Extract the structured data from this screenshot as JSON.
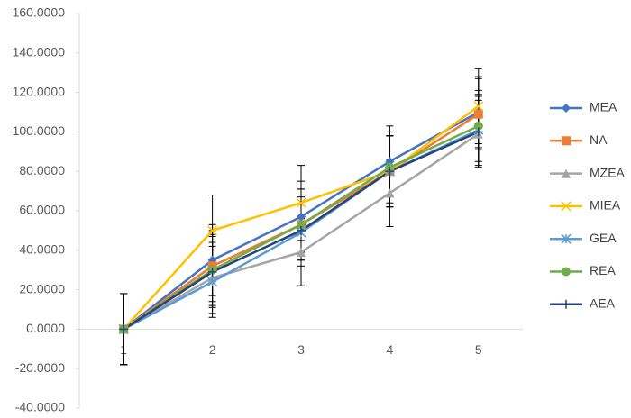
{
  "chart_data": {
    "type": "line",
    "categories": [
      "1",
      "2",
      "3",
      "4",
      "5"
    ],
    "ylim": [
      -40,
      160
    ],
    "yticks": [
      {
        "value": -40,
        "label": "-40.0000"
      },
      {
        "value": -20,
        "label": "-20.0000"
      },
      {
        "value": 0,
        "label": "0.0000"
      },
      {
        "value": 20,
        "label": "20.0000"
      },
      {
        "value": 40,
        "label": "40.0000"
      },
      {
        "value": 60,
        "label": "60.0000"
      },
      {
        "value": 80,
        "label": "80.0000"
      },
      {
        "value": 100,
        "label": "100.0000"
      },
      {
        "value": 120,
        "label": "120.0000"
      },
      {
        "value": 140,
        "label": "140.0000"
      },
      {
        "value": 160,
        "label": "160.0000"
      }
    ],
    "legend": "right",
    "series": [
      {
        "name": "MEA",
        "color": "#4472c4",
        "marker": "diamond",
        "values": [
          0,
          35,
          57,
          85,
          110
        ],
        "errors": [
          18,
          18,
          18,
          18,
          18
        ]
      },
      {
        "name": "NA",
        "color": "#ed7d31",
        "marker": "square",
        "values": [
          0,
          32,
          53,
          80,
          109
        ],
        "errors": [
          18,
          18,
          18,
          18,
          18
        ]
      },
      {
        "name": "MZEA",
        "color": "#a5a5a5",
        "marker": "triangle",
        "values": [
          0,
          26,
          39,
          69,
          99
        ],
        "errors": [
          18,
          18,
          17,
          17,
          17
        ]
      },
      {
        "name": "MIEA",
        "color": "#ffc000",
        "marker": "x",
        "values": [
          0,
          50,
          64,
          80,
          113
        ],
        "errors": [
          18,
          18,
          19,
          18,
          19
        ]
      },
      {
        "name": "GEA",
        "color": "#5b9bd5",
        "marker": "star",
        "values": [
          0,
          24,
          49,
          80,
          101
        ],
        "errors": [
          18,
          18,
          18,
          18,
          18
        ]
      },
      {
        "name": "REA",
        "color": "#70ad47",
        "marker": "circle",
        "values": [
          0,
          30,
          53,
          82,
          103
        ],
        "errors": [
          18,
          18,
          18,
          18,
          18
        ]
      },
      {
        "name": "AEA",
        "color": "#264478",
        "marker": "plus",
        "values": [
          0,
          29,
          50,
          80,
          100
        ],
        "errors": [
          18,
          18,
          18,
          18,
          18
        ]
      }
    ]
  }
}
